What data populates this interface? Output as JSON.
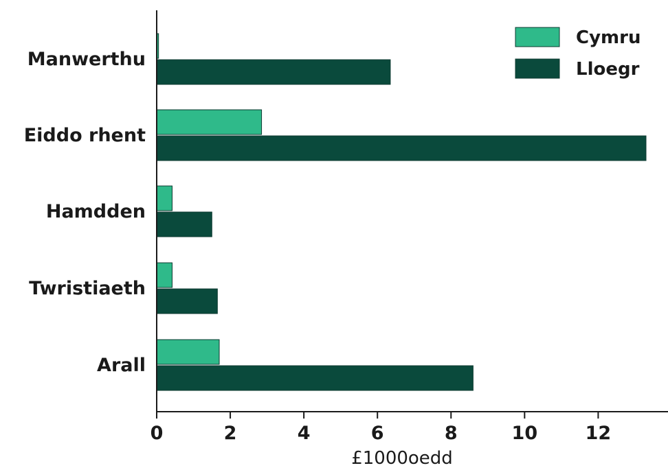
{
  "chart_data": {
    "type": "bar",
    "orientation": "horizontal",
    "categories": [
      "Manwerthu",
      "Eiddo rhent",
      "Hamdden",
      "Twristiaeth",
      "Arall"
    ],
    "series": [
      {
        "name": "Cymru",
        "color": "#2fba8a",
        "values": [
          0.05,
          2.85,
          0.42,
          0.42,
          1.7
        ]
      },
      {
        "name": "Lloegr",
        "color": "#0a4a3c",
        "values": [
          6.35,
          13.3,
          1.5,
          1.65,
          8.6
        ]
      }
    ],
    "xlabel": "£1000oedd",
    "ylabel": "",
    "xlim": [
      0,
      13.3
    ],
    "xticks": [
      0,
      2,
      4,
      6,
      8,
      10,
      12
    ],
    "grid": false,
    "legend": "top-right"
  }
}
